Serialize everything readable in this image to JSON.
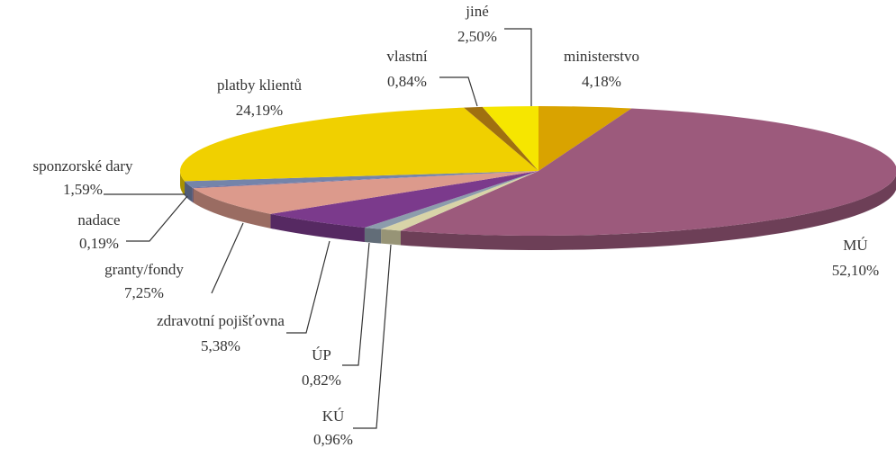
{
  "chart_data": {
    "type": "pie",
    "categories": [
      "ministerstvo",
      "MÚ",
      "KÚ",
      "ÚP",
      "zdravotní pojišťovna",
      "granty/fondy",
      "nadace",
      "sponzorské dary",
      "platby klientů",
      "vlastní",
      "jiné"
    ],
    "values": [
      4.18,
      52.1,
      0.96,
      0.82,
      5.38,
      7.25,
      0.19,
      1.59,
      24.19,
      0.84,
      2.5
    ],
    "value_labels": [
      "4,18%",
      "52,10%",
      "0,96%",
      "0,82%",
      "5,38%",
      "7,25%",
      "0,19%",
      "1,59%",
      "24,19%",
      "0,84%",
      "2,50%"
    ],
    "colors": [
      "#d9a300",
      "#9c5a7c",
      "#d8d4a8",
      "#8c9cac",
      "#7b3a8c",
      "#dc9a8c",
      "#6a6aa0",
      "#7484aa",
      "#f0d000",
      "#a07010",
      "#f6e600"
    ]
  }
}
